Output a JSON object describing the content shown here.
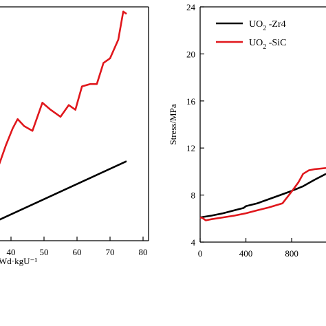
{
  "chart_data": [
    {
      "type": "line",
      "xlabel": "Wd·kgU⁻¹",
      "xticks": [
        40,
        50,
        60,
        70,
        80
      ],
      "xlim": [
        35,
        80
      ],
      "ylim": [
        0,
        10
      ],
      "series": [
        {
          "name": "UO2 -SiC",
          "color": "#e0171c",
          "x": [
            35,
            36.5,
            38.5,
            40.5,
            42,
            44,
            46.5,
            49.5,
            52,
            55,
            57.5,
            59.5,
            61.5,
            64,
            66,
            68,
            70,
            72.5,
            74,
            75
          ],
          "y": [
            3.6,
            3.3,
            4.1,
            4.8,
            5.2,
            4.9,
            4.7,
            5.9,
            5.6,
            5.3,
            5.8,
            5.6,
            6.6,
            6.7,
            6.7,
            7.6,
            7.8,
            8.6,
            9.8,
            9.7
          ]
        },
        {
          "name": "UO2 -Zr4",
          "color": "#000000",
          "x": [
            35,
            75
          ],
          "y": [
            0.8,
            3.4
          ]
        }
      ]
    },
    {
      "type": "line",
      "ylabel": "Stress/MPa",
      "yticks": [
        4,
        8,
        12,
        16,
        20,
        24
      ],
      "xticks": [
        0,
        400,
        800
      ],
      "xlim": [
        0,
        1100
      ],
      "ylim": [
        4,
        24
      ],
      "legend": {
        "placement": "top-left",
        "entries": [
          {
            "prefix": "UO",
            "sub": "2",
            "suffix": " -Zr4",
            "color": "#000000"
          },
          {
            "prefix": "UO",
            "sub": "2",
            "suffix": " -SiC",
            "color": "#e0171c"
          }
        ]
      },
      "series": [
        {
          "name": "UO2 -Zr4",
          "color": "#000000",
          "x": [
            0,
            100,
            200,
            300,
            380,
            400,
            500,
            600,
            700,
            800,
            900,
            1000,
            1100
          ],
          "y": [
            6.1,
            6.25,
            6.45,
            6.7,
            6.9,
            7.05,
            7.3,
            7.65,
            8.0,
            8.35,
            8.75,
            9.3,
            9.8
          ]
        },
        {
          "name": "UO2 -SiC",
          "color": "#e0171c",
          "x": [
            0,
            20,
            50,
            100,
            200,
            300,
            400,
            500,
            600,
            720,
            800,
            860,
            900,
            950,
            1000,
            1100
          ],
          "y": [
            6.1,
            6.05,
            5.85,
            5.95,
            6.1,
            6.25,
            6.45,
            6.7,
            6.95,
            7.3,
            8.3,
            9.1,
            9.8,
            10.1,
            10.2,
            10.3
          ]
        }
      ]
    }
  ]
}
